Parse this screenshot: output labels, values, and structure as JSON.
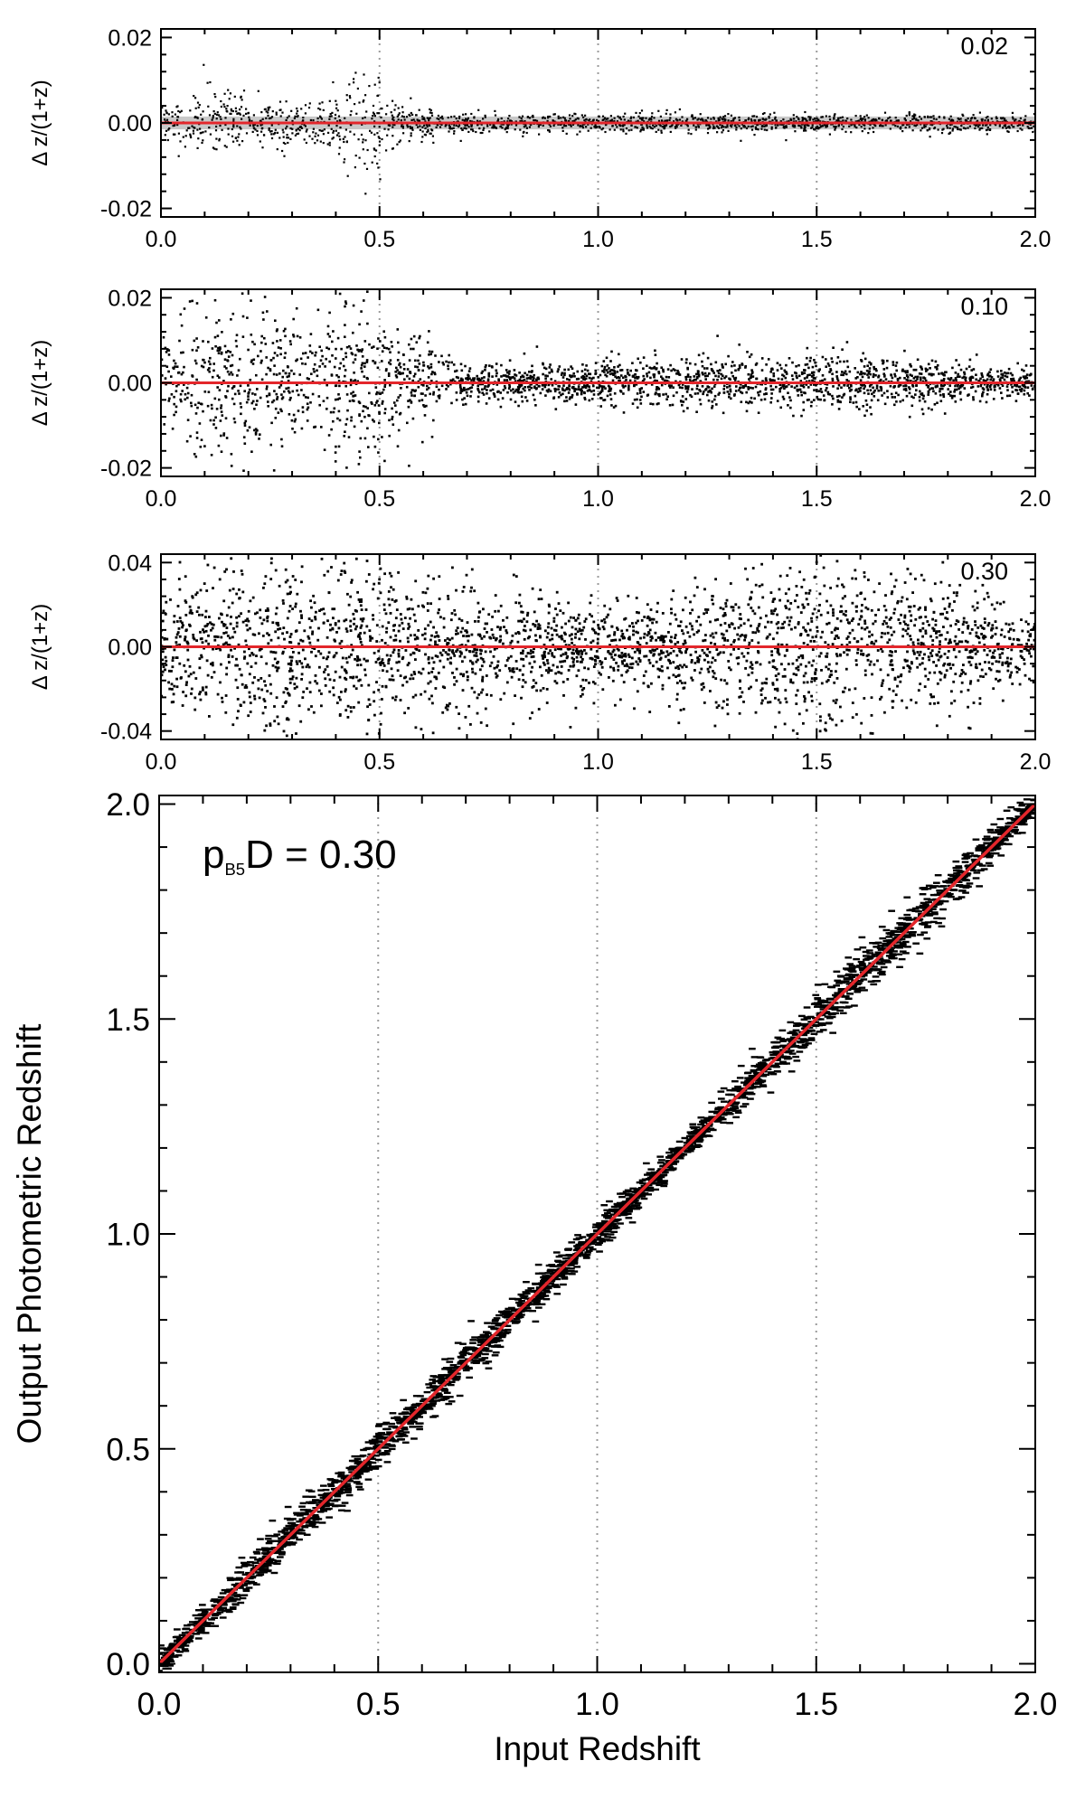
{
  "colors": {
    "reference_line": "#e3262b",
    "points": "#000000",
    "grid": "#9a9a9a",
    "axes": "#000000",
    "band": "#c8c8c8"
  },
  "chart_data": [
    {
      "type": "scatter",
      "panel": "residual",
      "annotation": "0.02",
      "xlabel": "",
      "ylabel": "Δ z/(1+z)",
      "xlim": [
        0.0,
        2.0
      ],
      "ylim": [
        -0.022,
        0.022
      ],
      "xticks": [
        "0.0",
        "0.5",
        "1.0",
        "1.5",
        "2.0"
      ],
      "yticks": [
        {
          "value": 0.02,
          "label": "0.02"
        },
        {
          "value": 0.0,
          "label": "0.00"
        },
        {
          "value": -0.02,
          "label": "-0.02"
        }
      ],
      "grid_x": [
        0.5,
        1.0,
        1.5
      ],
      "grid_style": "dotted vertical",
      "reference_line": {
        "y": 0.0
      },
      "scatter_envelope": [
        {
          "x": 0.0,
          "amp": 0.004
        },
        {
          "x": 0.1,
          "amp": 0.008
        },
        {
          "x": 0.2,
          "amp": 0.006
        },
        {
          "x": 0.3,
          "amp": 0.005
        },
        {
          "x": 0.4,
          "amp": 0.006
        },
        {
          "x": 0.47,
          "amp": 0.018
        },
        {
          "x": 0.55,
          "amp": 0.004
        },
        {
          "x": 0.7,
          "amp": 0.002
        },
        {
          "x": 1.0,
          "amp": 0.002
        },
        {
          "x": 1.5,
          "amp": 0.002
        },
        {
          "x": 2.0,
          "amp": 0.002
        }
      ]
    },
    {
      "type": "scatter",
      "panel": "residual",
      "annotation": "0.10",
      "xlabel": "",
      "ylabel": "Δ z/(1+z)",
      "xlim": [
        0.0,
        2.0
      ],
      "ylim": [
        -0.022,
        0.022
      ],
      "xticks": [
        "0.0",
        "0.5",
        "1.0",
        "1.5",
        "2.0"
      ],
      "yticks": [
        {
          "value": 0.02,
          "label": "0.02"
        },
        {
          "value": 0.0,
          "label": "0.00"
        },
        {
          "value": -0.02,
          "label": "-0.02"
        }
      ],
      "grid_x": [
        0.5,
        1.0,
        1.5
      ],
      "grid_style": "dotted vertical",
      "reference_line": {
        "y": 0.0
      },
      "scatter_envelope": [
        {
          "x": 0.0,
          "amp": 0.012
        },
        {
          "x": 0.1,
          "amp": 0.018
        },
        {
          "x": 0.2,
          "amp": 0.02
        },
        {
          "x": 0.3,
          "amp": 0.014
        },
        {
          "x": 0.45,
          "amp": 0.02
        },
        {
          "x": 0.6,
          "amp": 0.01
        },
        {
          "x": 0.7,
          "amp": 0.004
        },
        {
          "x": 1.0,
          "amp": 0.005
        },
        {
          "x": 1.5,
          "amp": 0.007
        },
        {
          "x": 2.0,
          "amp": 0.003
        }
      ]
    },
    {
      "type": "scatter",
      "panel": "residual",
      "annotation": "0.30",
      "xlabel": "",
      "ylabel": "Δ z/(1+z)",
      "xlim": [
        0.0,
        2.0
      ],
      "ylim": [
        -0.044,
        0.044
      ],
      "xticks": [
        "0.0",
        "0.5",
        "1.0",
        "1.5",
        "2.0"
      ],
      "yticks": [
        {
          "value": 0.04,
          "label": "0.04"
        },
        {
          "value": 0.0,
          "label": "0.00"
        },
        {
          "value": -0.04,
          "label": "-0.04"
        }
      ],
      "grid_x": [
        0.5,
        1.0,
        1.5
      ],
      "grid_style": "dotted vertical",
      "reference_line": {
        "y": 0.0
      },
      "scatter_envelope": [
        {
          "x": 0.0,
          "amp": 0.03
        },
        {
          "x": 0.2,
          "amp": 0.04
        },
        {
          "x": 0.5,
          "amp": 0.04
        },
        {
          "x": 0.8,
          "amp": 0.025
        },
        {
          "x": 1.0,
          "amp": 0.02
        },
        {
          "x": 1.3,
          "amp": 0.03
        },
        {
          "x": 1.5,
          "amp": 0.04
        },
        {
          "x": 1.8,
          "amp": 0.03
        },
        {
          "x": 2.0,
          "amp": 0.015
        }
      ]
    },
    {
      "type": "scatter",
      "panel": "main",
      "annotation": "p",
      "annotation_sub": "B5",
      "annotation_rest": "D = 0.30",
      "xlabel": "Input Redshift",
      "ylabel": "Output Photometric Redshift",
      "xlim": [
        0.0,
        2.0
      ],
      "ylim": [
        -0.02,
        2.02
      ],
      "xticks": [
        "0.0",
        "0.5",
        "1.0",
        "1.5",
        "2.0"
      ],
      "yticks": [
        {
          "value": 2.0,
          "label": "2.0"
        },
        {
          "value": 1.5,
          "label": "1.5"
        },
        {
          "value": 1.0,
          "label": "1.0"
        },
        {
          "value": 0.5,
          "label": "0.5"
        },
        {
          "value": 0.0,
          "label": "0.0"
        }
      ],
      "grid_x": [
        0.5,
        1.0,
        1.5
      ],
      "grid_style": "dotted vertical",
      "reference_line": {
        "slope": 1.0,
        "intercept": 0.0
      },
      "scatter_envelope": [
        {
          "x": 0.0,
          "amp": 0.03
        },
        {
          "x": 0.2,
          "amp": 0.05
        },
        {
          "x": 0.5,
          "amp": 0.05
        },
        {
          "x": 0.8,
          "amp": 0.05
        },
        {
          "x": 1.0,
          "amp": 0.04
        },
        {
          "x": 1.2,
          "amp": 0.03
        },
        {
          "x": 1.5,
          "amp": 0.06
        },
        {
          "x": 1.8,
          "amp": 0.06
        },
        {
          "x": 2.0,
          "amp": 0.03
        }
      ]
    }
  ]
}
